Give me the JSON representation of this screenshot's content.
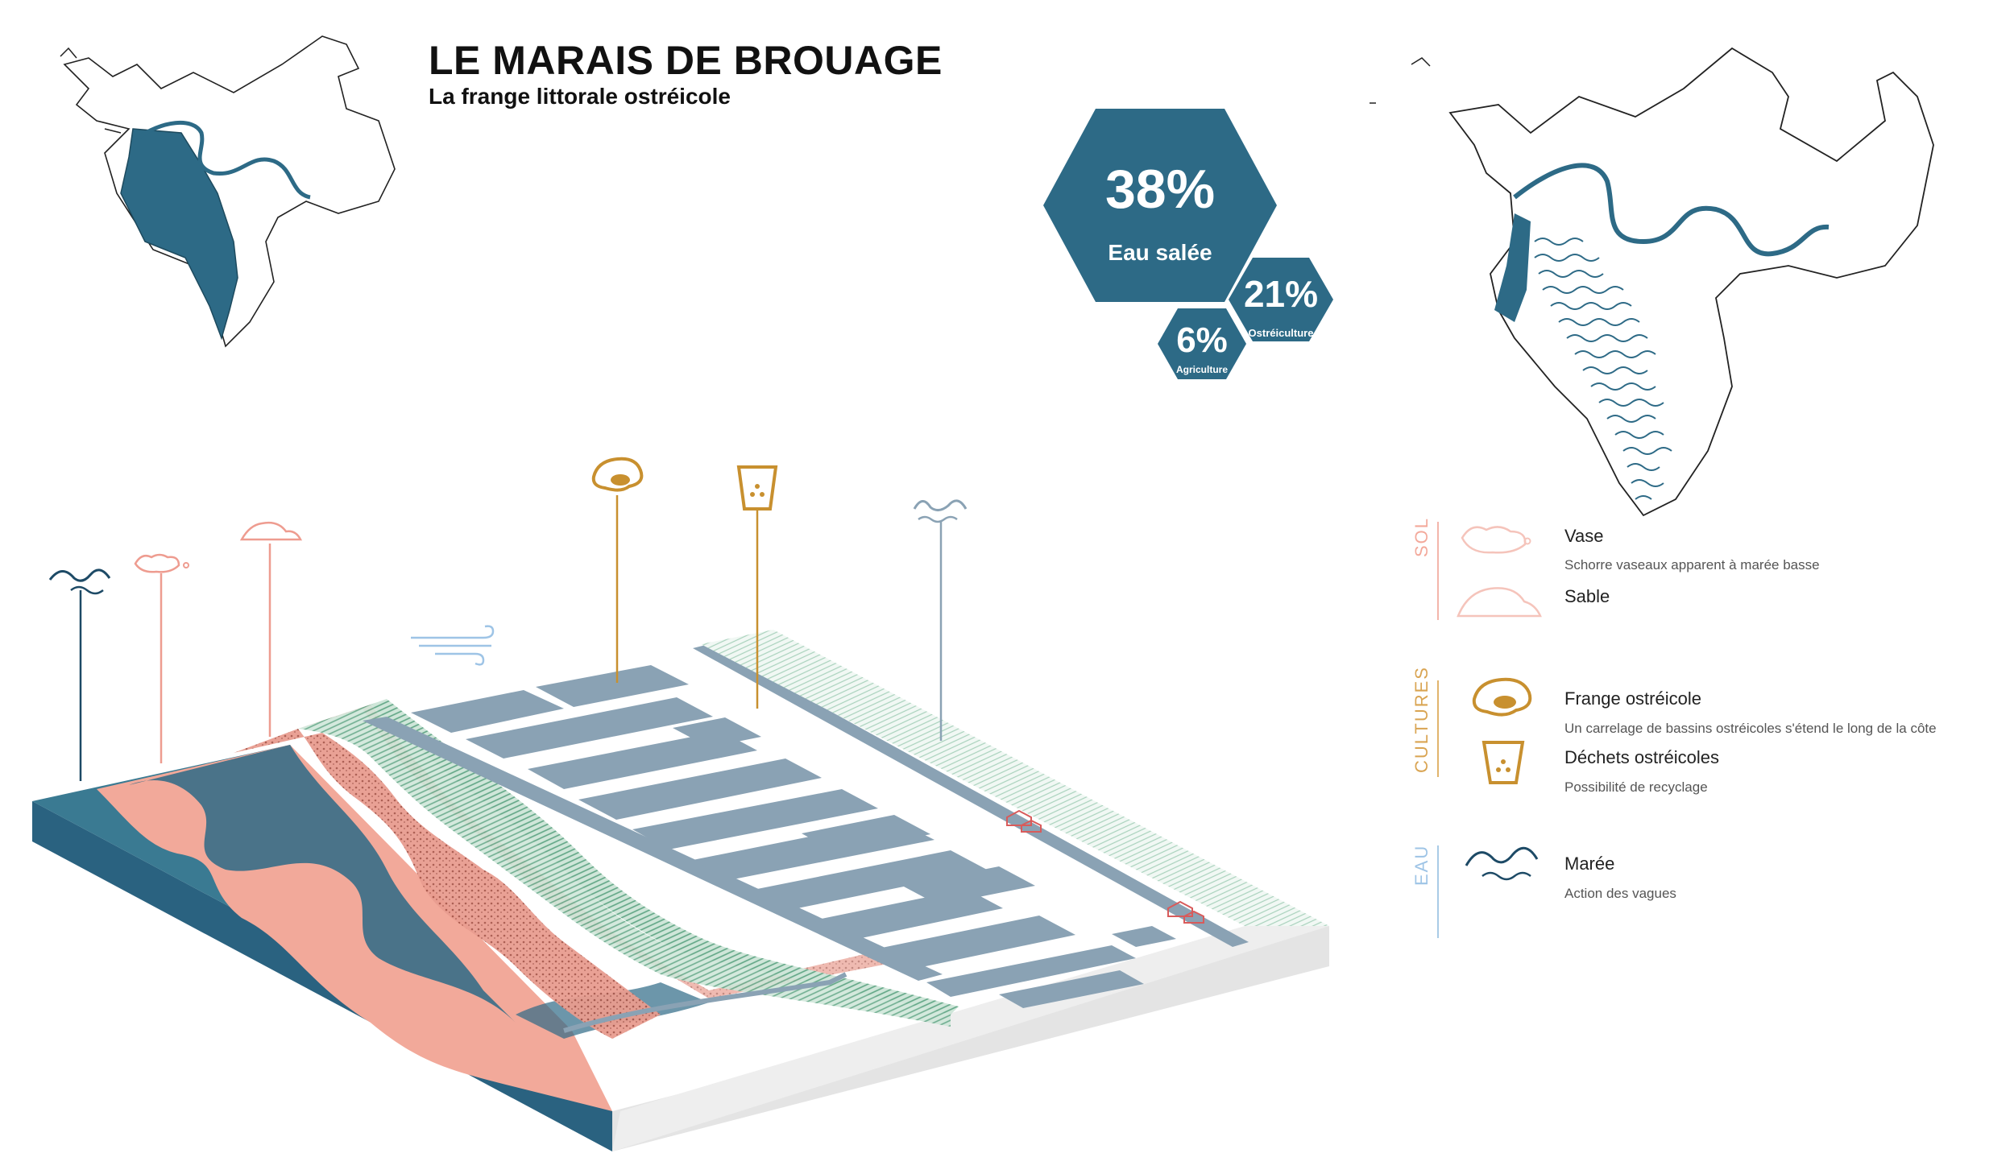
{
  "header": {
    "title": "LE MARAIS DE BROUAGE",
    "subtitle": "La frange littorale ostréicole"
  },
  "stats": [
    {
      "value": "38%",
      "label": "Eau salée"
    },
    {
      "value": "21%",
      "label": "Ostréiculture"
    },
    {
      "value": "6%",
      "label": "Agriculture"
    }
  ],
  "legend": {
    "sol": {
      "category": "SOL",
      "items": [
        {
          "title": "Vase",
          "desc": "Schorre vaseaux apparent à marée basse"
        },
        {
          "title": "Sable",
          "desc": ""
        }
      ]
    },
    "cultures": {
      "category": "CULTURES",
      "items": [
        {
          "title": "Frange ostréicole",
          "desc": "Un carrelage de bassins ostréicoles s'étend le long de la côte"
        },
        {
          "title": "Déchets ostréicoles",
          "desc": "Possibilité de recyclage"
        }
      ]
    },
    "eau": {
      "category": "EAU",
      "items": [
        {
          "title": "Marée",
          "desc": "Action des vagues"
        }
      ]
    }
  },
  "colors": {
    "sea": "#2d6a86",
    "pink": "#f2a99a",
    "gold": "#c8902f",
    "pond": "#8aa2b4",
    "green": "#8fc4a6",
    "wind": "#9ec4e6"
  }
}
